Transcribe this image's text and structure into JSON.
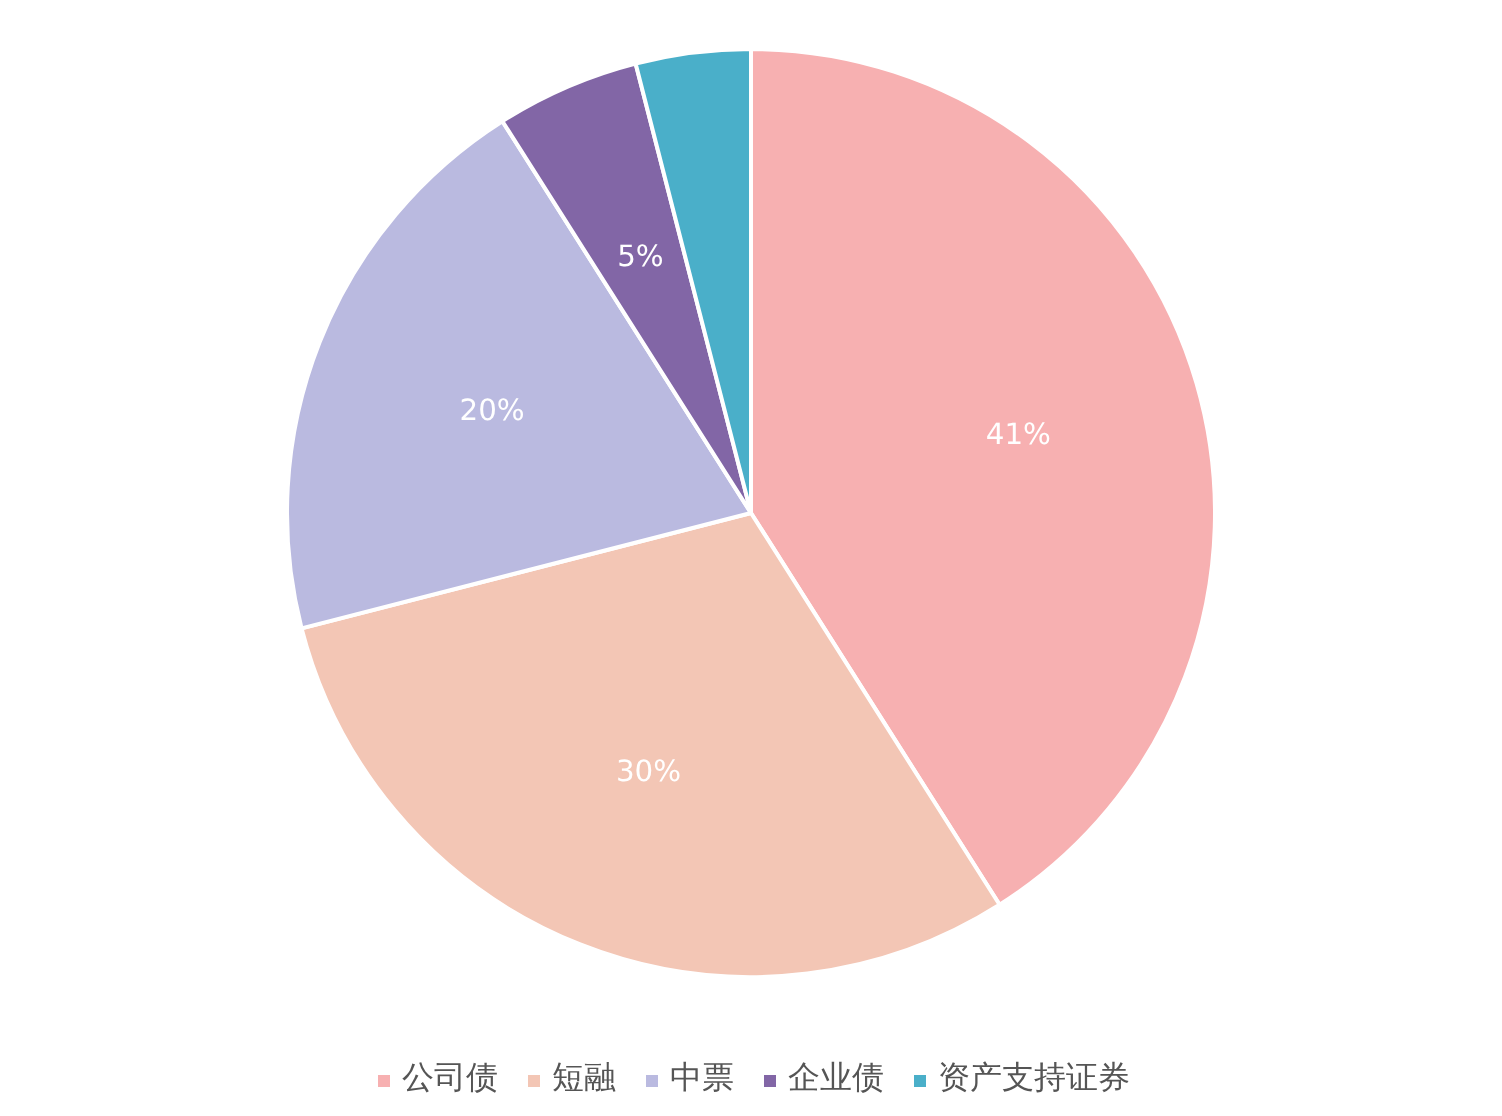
{
  "chart_data": {
    "type": "pie",
    "categories": [
      "公司债",
      "短融",
      "中票",
      "企业债",
      "资产支持证券"
    ],
    "values": [
      41,
      30,
      20,
      5,
      4
    ],
    "colors": [
      "#f7b0b1",
      "#f3c6b5",
      "#babae0",
      "#8266a6",
      "#4aafc9"
    ],
    "value_labels": [
      "41%",
      "30%",
      "20%",
      "5%",
      null
    ],
    "legend": "bottom"
  }
}
